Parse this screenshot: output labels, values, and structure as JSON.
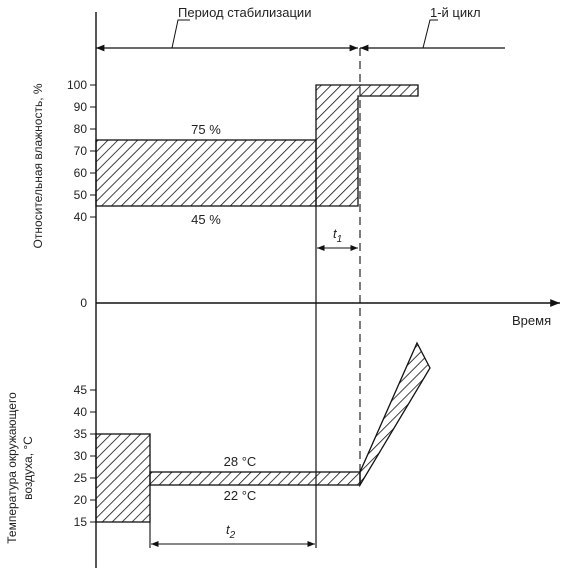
{
  "top_labels": {
    "stabilization_period": "Период стабилизации",
    "first_cycle": "1-й цикл"
  },
  "y_axis_humidity": {
    "title": "Относительная влажность, %",
    "ticks": [
      "100",
      "90",
      "80",
      "70",
      "60",
      "50",
      "40"
    ]
  },
  "zero_label": "0",
  "time_label": "Время",
  "humidity_annotations": {
    "upper": "75 %",
    "lower": "45 %",
    "t1_base": "t",
    "t1_sub": "1"
  },
  "y_axis_temperature": {
    "title_line1": "Температура окружающего",
    "title_line2": "воздуха, °С",
    "ticks": [
      "45",
      "40",
      "35",
      "30",
      "25",
      "20",
      "15"
    ]
  },
  "temperature_annotations": {
    "upper": "28 °С",
    "lower": "22 °С",
    "t2_base": "t",
    "t2_sub": "2"
  }
}
